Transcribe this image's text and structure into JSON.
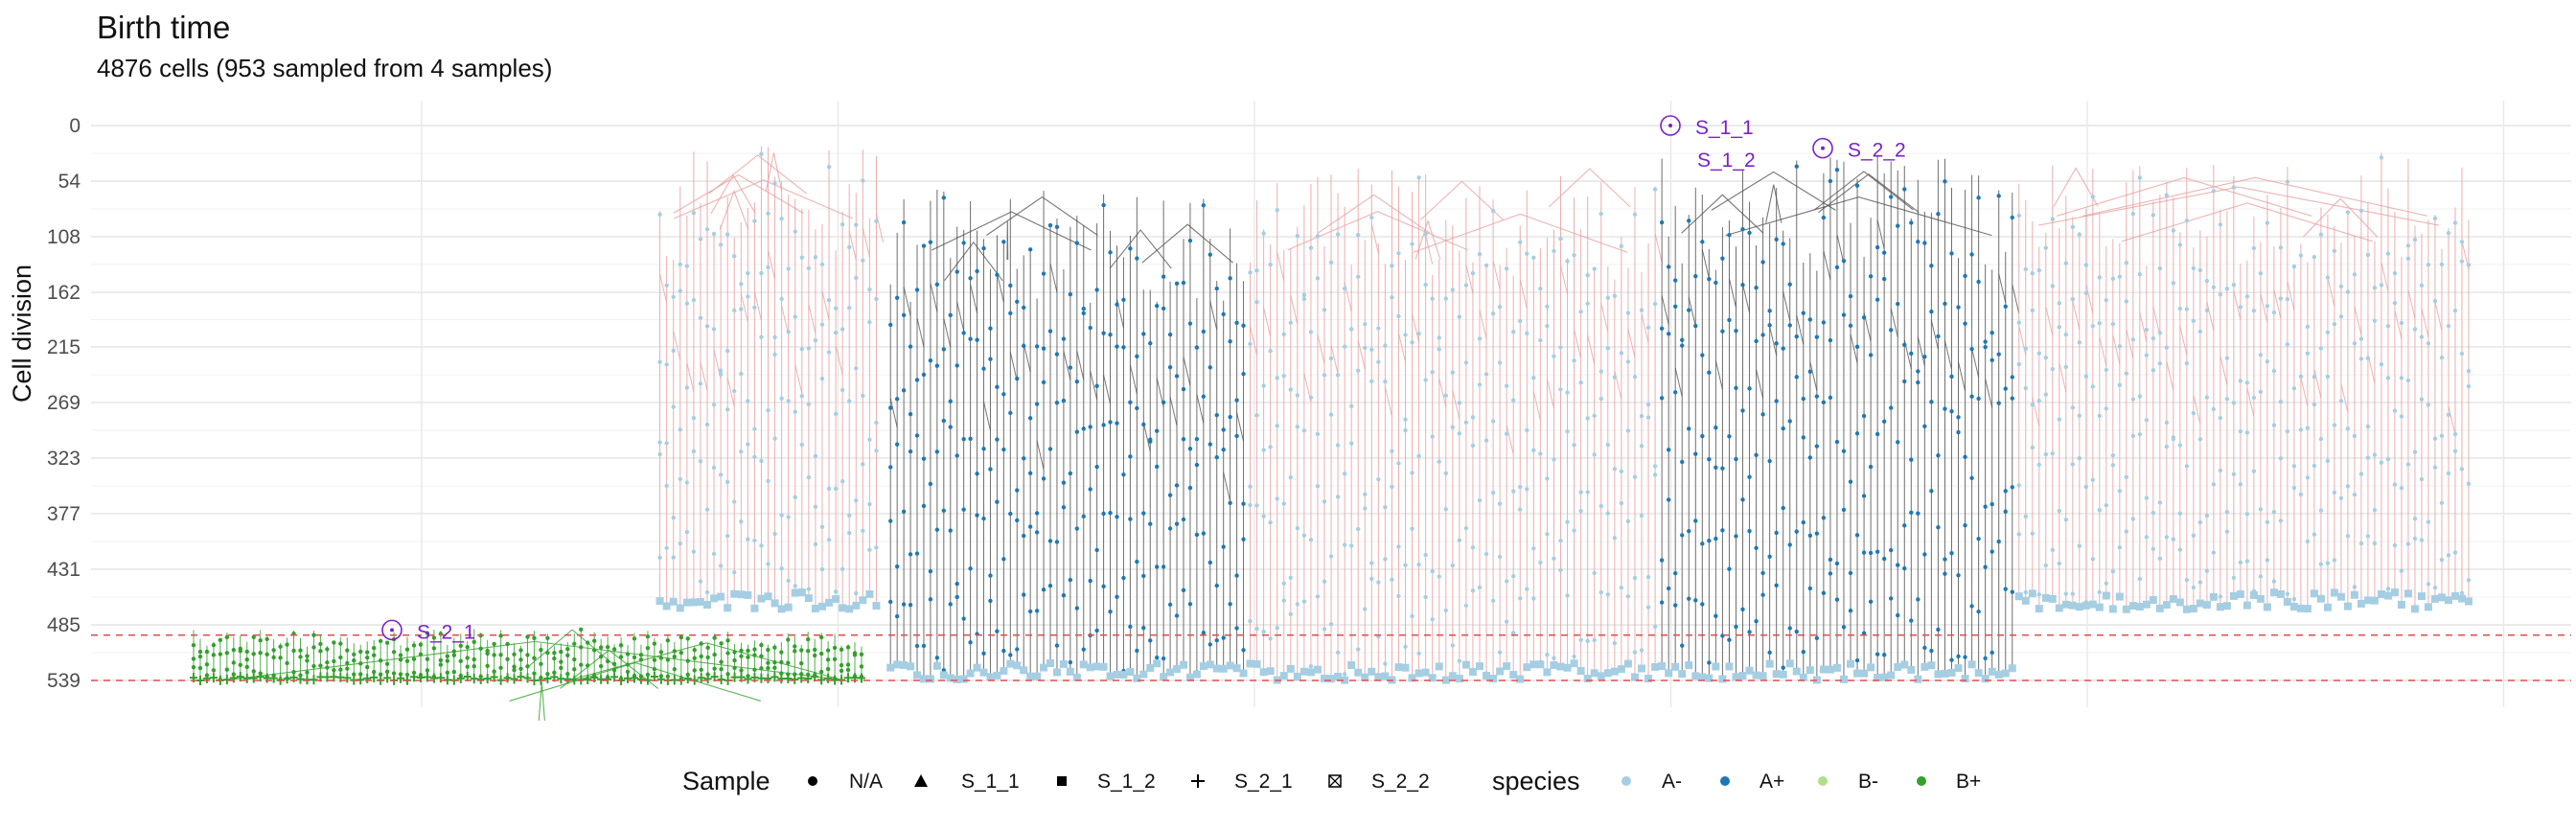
{
  "chart_data": {
    "type": "tree",
    "title": "Birth time",
    "subtitle": "4876 cells (953 sampled from 4 samples)",
    "xlabel": "",
    "ylabel": "Cell division",
    "y_reversed": true,
    "y_ticks": [
      0,
      54,
      108,
      162,
      215,
      269,
      323,
      377,
      431,
      485,
      539
    ],
    "ylim": [
      0,
      539
    ],
    "x_grid_count": 6,
    "grid": true,
    "sample_cut_lines": [
      {
        "y": 495,
        "color": "#e05252",
        "style": "dashed"
      },
      {
        "y": 539,
        "color": "#e05252",
        "style": "dashed"
      }
    ],
    "sample_annotations": [
      {
        "label": "S_1_1",
        "y": 0,
        "color": "#7a22c9"
      },
      {
        "label": "S_2_2",
        "y": 22,
        "color": "#7a22c9"
      },
      {
        "label": "S_1_2",
        "y": 40,
        "color": "#7a22c9"
      },
      {
        "label": "S_2_1",
        "y": 490,
        "color": "#7a22c9"
      }
    ],
    "clades": [
      {
        "species": "A-",
        "x_from": 0.228,
        "x_to": 0.318,
        "top": 20,
        "bottom": 470
      },
      {
        "species": "A+",
        "x_from": 0.321,
        "x_to": 0.466,
        "top": 62,
        "bottom": 539
      },
      {
        "species": "A-",
        "x_from": 0.466,
        "x_to": 0.632,
        "top": 40,
        "bottom": 539
      },
      {
        "species": "A+",
        "x_from": 0.632,
        "x_to": 0.776,
        "top": 30,
        "bottom": 539
      },
      {
        "species": "A-",
        "x_from": 0.776,
        "x_to": 0.96,
        "top": 25,
        "bottom": 470
      },
      {
        "species": "B+",
        "x_from": 0.04,
        "x_to": 0.312,
        "top": 488,
        "bottom": 539
      }
    ],
    "legend": {
      "placement": "bottom",
      "sample": {
        "title": "Sample",
        "items": [
          {
            "label": "N/A",
            "shape": "circle"
          },
          {
            "label": "S_1_1",
            "shape": "triangle"
          },
          {
            "label": "S_1_2",
            "shape": "square"
          },
          {
            "label": "S_2_1",
            "shape": "plus"
          },
          {
            "label": "S_2_2",
            "shape": "boxed-x"
          }
        ]
      },
      "species": {
        "title": "species",
        "items": [
          {
            "label": "A-",
            "color": "#a6cee3"
          },
          {
            "label": "A+",
            "color": "#1f78b4"
          },
          {
            "label": "B-",
            "color": "#b2df8a"
          },
          {
            "label": "B+",
            "color": "#33a02c"
          }
        ]
      }
    },
    "edge_colors": {
      "A-": "#e8a0a0",
      "A+": "#555555",
      "B+": "#33a02c"
    }
  }
}
